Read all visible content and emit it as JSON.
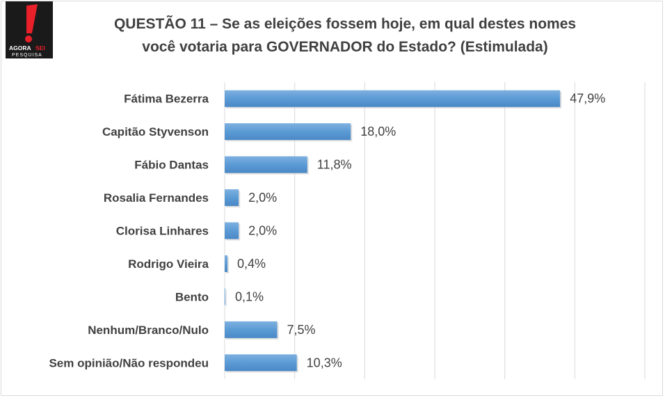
{
  "logo": {
    "brand_text": "AGORA",
    "brand_accent": "SEI",
    "sub_text": "PESQUISA"
  },
  "header": {
    "title_line1": "QUESTÃO 11 – Se as eleições fossem hoje, em qual destes nomes",
    "title_line2": "você votaria para GOVERNADOR do Estado? (Estimulada)"
  },
  "chart_data": {
    "type": "bar",
    "orientation": "horizontal",
    "categories": [
      "Fátima Bezerra",
      "Capitão Styvenson",
      "Fábio Dantas",
      "Rosalia Fernandes",
      "Clorisa Linhares",
      "Rodrigo Vieira",
      "Bento",
      "Nenhum/Branco/Nulo",
      "Sem opinião/Não respondeu"
    ],
    "values": [
      47.9,
      18.0,
      11.8,
      2.0,
      2.0,
      0.4,
      0.1,
      7.5,
      10.3
    ],
    "data_labels": [
      "47,9%",
      "18,0%",
      "11,8%",
      "2,0%",
      "2,0%",
      "0,4%",
      "0,1%",
      "7,5%",
      "10,3%"
    ],
    "xlim": [
      0,
      60
    ],
    "grid": true,
    "legend": "none",
    "colors": {
      "bar": "#5b9bd5",
      "grid": "#d9d9d9",
      "text": "#404040"
    }
  }
}
